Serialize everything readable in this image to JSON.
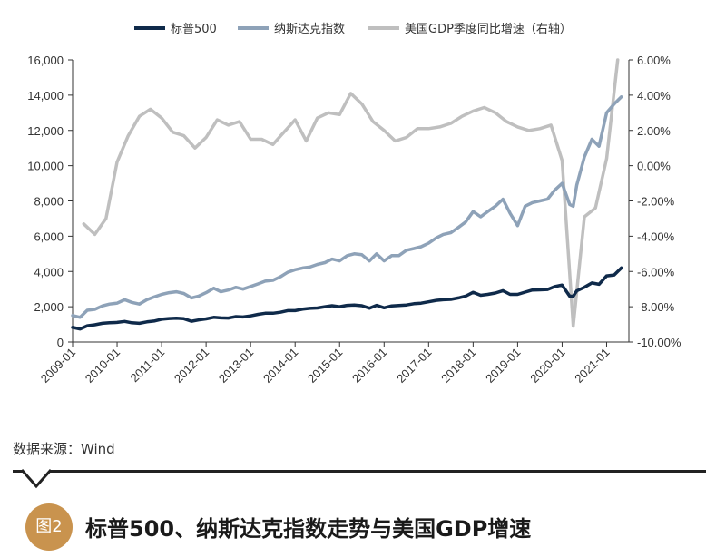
{
  "legend": {
    "sp500": "标普500",
    "nasdaq": "纳斯达克指数",
    "gdp": "美国GDP季度同比增速（右轴）"
  },
  "source": "数据来源：Wind",
  "figure": {
    "badge": "图2",
    "caption": "标普500、纳斯达克指数走势与美国GDP增速"
  },
  "colors": {
    "sp500": "#0f2a4a",
    "nasdaq": "#8ea2b8",
    "gdp": "#bfbfbf",
    "axis": "#333333",
    "badge": "#c9934e"
  },
  "chart_data": {
    "type": "line",
    "x_ticks": [
      "2009-01",
      "2010-01",
      "2011-01",
      "2012-01",
      "2013-01",
      "2014-01",
      "2015-01",
      "2016-01",
      "2017-01",
      "2018-01",
      "2019-01",
      "2020-01",
      "2021-01"
    ],
    "y_left": {
      "ticks": [
        "0",
        "2,000",
        "4,000",
        "6,000",
        "8,000",
        "10,000",
        "12,000",
        "14,000",
        "16,000"
      ],
      "range": [
        0,
        16000
      ]
    },
    "y_right": {
      "ticks": [
        "-10.00%",
        "-8.00%",
        "-6.00%",
        "-4.00%",
        "-2.00%",
        "0.00%",
        "2.00%",
        "4.00%",
        "6.00%"
      ],
      "range": [
        -10,
        6
      ]
    },
    "series": [
      {
        "name": "标普500",
        "axis": "left",
        "x": [
          2009.0,
          2009.17,
          2009.33,
          2009.5,
          2009.67,
          2009.83,
          2010.0,
          2010.17,
          2010.33,
          2010.5,
          2010.67,
          2010.83,
          2011.0,
          2011.17,
          2011.33,
          2011.5,
          2011.67,
          2011.83,
          2012.0,
          2012.17,
          2012.33,
          2012.5,
          2012.67,
          2012.83,
          2013.0,
          2013.17,
          2013.33,
          2013.5,
          2013.67,
          2013.83,
          2014.0,
          2014.17,
          2014.33,
          2014.5,
          2014.67,
          2014.83,
          2015.0,
          2015.17,
          2015.33,
          2015.5,
          2015.67,
          2015.83,
          2016.0,
          2016.17,
          2016.33,
          2016.5,
          2016.67,
          2016.83,
          2017.0,
          2017.17,
          2017.33,
          2017.5,
          2017.67,
          2017.83,
          2018.0,
          2018.17,
          2018.33,
          2018.5,
          2018.67,
          2018.83,
          2019.0,
          2019.17,
          2019.33,
          2019.5,
          2019.67,
          2019.83,
          2020.0,
          2020.17,
          2020.25,
          2020.33,
          2020.5,
          2020.67,
          2020.83,
          2021.0,
          2021.17,
          2021.33
        ],
        "y": [
          830,
          740,
          920,
          980,
          1060,
          1090,
          1110,
          1170,
          1090,
          1060,
          1140,
          1190,
          1290,
          1330,
          1350,
          1320,
          1180,
          1250,
          1310,
          1400,
          1370,
          1360,
          1440,
          1420,
          1480,
          1570,
          1630,
          1630,
          1690,
          1780,
          1780,
          1860,
          1910,
          1930,
          2000,
          2060,
          2000,
          2080,
          2100,
          2060,
          1920,
          2080,
          1940,
          2050,
          2070,
          2100,
          2170,
          2200,
          2280,
          2360,
          2400,
          2420,
          2500,
          2600,
          2820,
          2650,
          2700,
          2780,
          2910,
          2700,
          2700,
          2830,
          2950,
          2960,
          2980,
          3140,
          3230,
          2600,
          2600,
          2900,
          3100,
          3350,
          3270,
          3750,
          3800,
          4200
        ]
      },
      {
        "name": "纳斯达克指数",
        "axis": "left",
        "x": [
          2009.0,
          2009.17,
          2009.33,
          2009.5,
          2009.67,
          2009.83,
          2010.0,
          2010.17,
          2010.33,
          2010.5,
          2010.67,
          2010.83,
          2011.0,
          2011.17,
          2011.33,
          2011.5,
          2011.67,
          2011.83,
          2012.0,
          2012.17,
          2012.33,
          2012.5,
          2012.67,
          2012.83,
          2013.0,
          2013.17,
          2013.33,
          2013.5,
          2013.67,
          2013.83,
          2014.0,
          2014.17,
          2014.33,
          2014.5,
          2014.67,
          2014.83,
          2015.0,
          2015.17,
          2015.33,
          2015.5,
          2015.67,
          2015.83,
          2016.0,
          2016.17,
          2016.33,
          2016.5,
          2016.67,
          2016.83,
          2017.0,
          2017.17,
          2017.33,
          2017.5,
          2017.67,
          2017.83,
          2018.0,
          2018.17,
          2018.33,
          2018.5,
          2018.67,
          2018.83,
          2019.0,
          2019.17,
          2019.33,
          2019.5,
          2019.67,
          2019.83,
          2020.0,
          2020.17,
          2020.25,
          2020.33,
          2020.5,
          2020.67,
          2020.83,
          2021.0,
          2021.17,
          2021.33
        ],
        "y": [
          1500,
          1400,
          1800,
          1850,
          2050,
          2150,
          2200,
          2400,
          2250,
          2150,
          2400,
          2550,
          2700,
          2800,
          2850,
          2750,
          2500,
          2600,
          2800,
          3050,
          2850,
          2950,
          3100,
          3000,
          3150,
          3300,
          3450,
          3500,
          3700,
          3950,
          4100,
          4200,
          4250,
          4400,
          4500,
          4700,
          4600,
          4900,
          5000,
          4950,
          4600,
          5000,
          4600,
          4900,
          4900,
          5200,
          5300,
          5400,
          5600,
          5900,
          6100,
          6200,
          6500,
          6800,
          7400,
          7100,
          7400,
          7700,
          8100,
          7300,
          6600,
          7700,
          7900,
          8000,
          8100,
          8600,
          9000,
          7800,
          7700,
          8900,
          10500,
          11500,
          11100,
          13000,
          13500,
          13900
        ]
      },
      {
        "name": "美国GDP季度同比增速（右轴）",
        "axis": "right",
        "x": [
          2009.25,
          2009.5,
          2009.75,
          2010.0,
          2010.25,
          2010.5,
          2010.75,
          2011.0,
          2011.25,
          2011.5,
          2011.75,
          2012.0,
          2012.25,
          2012.5,
          2012.75,
          2013.0,
          2013.25,
          2013.5,
          2013.75,
          2014.0,
          2014.25,
          2014.5,
          2014.75,
          2015.0,
          2015.25,
          2015.5,
          2015.75,
          2016.0,
          2016.25,
          2016.5,
          2016.75,
          2017.0,
          2017.25,
          2017.5,
          2017.75,
          2018.0,
          2018.25,
          2018.5,
          2018.75,
          2019.0,
          2019.25,
          2019.5,
          2019.75,
          2020.0,
          2020.25,
          2020.5,
          2020.75,
          2021.0,
          2021.25
        ],
        "y": [
          -3.3,
          -3.9,
          -3.0,
          0.2,
          1.7,
          2.8,
          3.2,
          2.7,
          1.9,
          1.7,
          1.0,
          1.6,
          2.6,
          2.3,
          2.5,
          1.5,
          1.5,
          1.2,
          1.9,
          2.6,
          1.4,
          2.7,
          3.0,
          2.9,
          4.1,
          3.5,
          2.5,
          2.0,
          1.4,
          1.6,
          2.1,
          2.1,
          2.2,
          2.4,
          2.8,
          3.1,
          3.3,
          3.0,
          2.5,
          2.2,
          2.0,
          2.1,
          2.3,
          0.3,
          -9.1,
          -2.9,
          -2.4,
          0.4,
          6.0
        ]
      }
    ]
  }
}
